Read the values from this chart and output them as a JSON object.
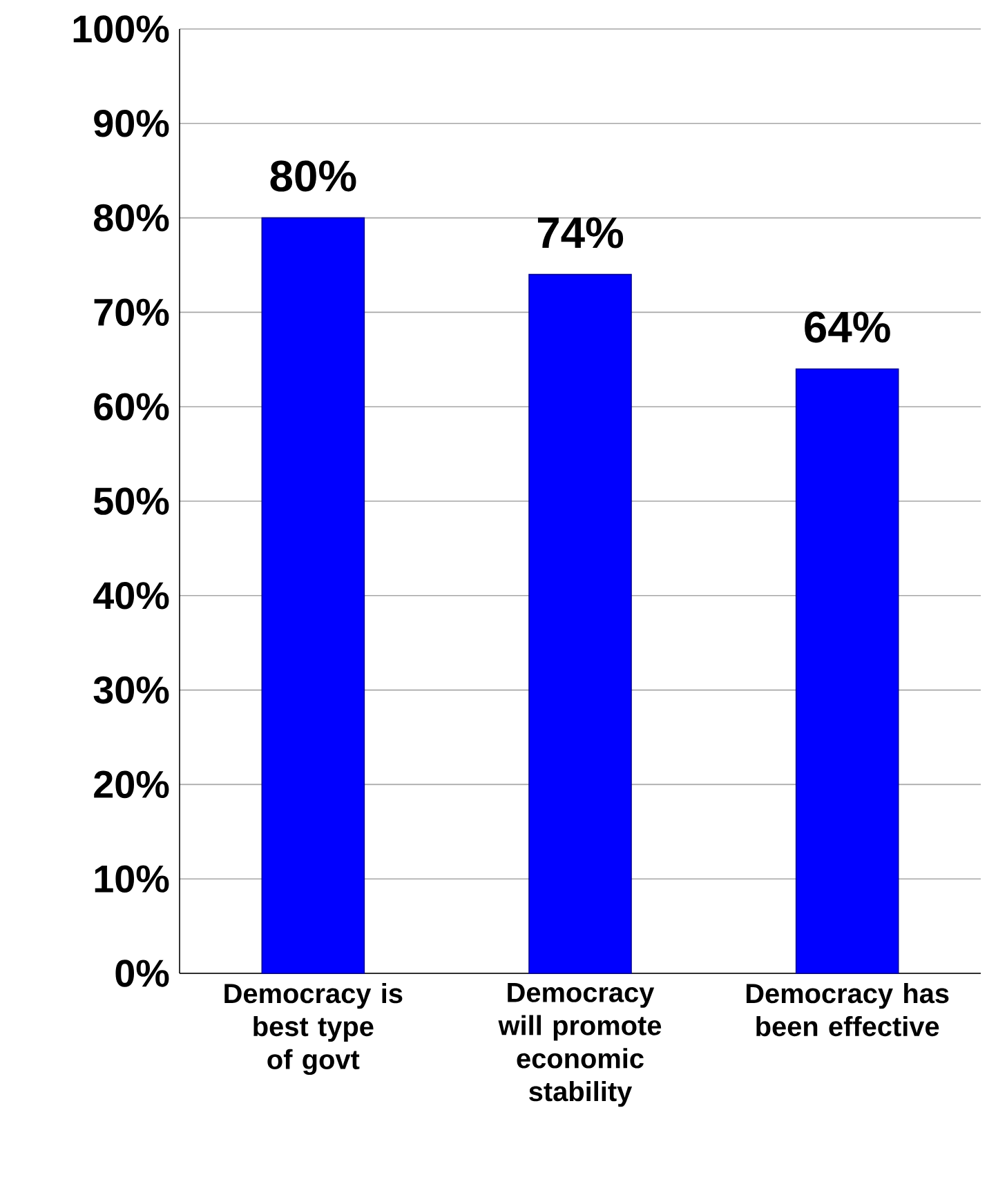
{
  "chart_data": {
    "type": "bar",
    "categories": [
      "Democracy is best type of govt",
      "Democracy will promote economic stability",
      "Democracy has been effective"
    ],
    "values": [
      80,
      74,
      64
    ],
    "value_labels": [
      "80%",
      "74%",
      "64%"
    ],
    "color": "#0000ff",
    "ylim": [
      0,
      100
    ],
    "yticks": [
      {
        "value": 0,
        "label": "0%"
      },
      {
        "value": 10,
        "label": "10%"
      },
      {
        "value": 20,
        "label": "20%"
      },
      {
        "value": 30,
        "label": "30%"
      },
      {
        "value": 40,
        "label": "40%"
      },
      {
        "value": 50,
        "label": "50%"
      },
      {
        "value": 60,
        "label": "60%"
      },
      {
        "value": 70,
        "label": "70%"
      },
      {
        "value": 80,
        "label": "80%"
      },
      {
        "value": 90,
        "label": "90%"
      },
      {
        "value": 100,
        "label": "100%"
      }
    ],
    "grid": "y"
  }
}
